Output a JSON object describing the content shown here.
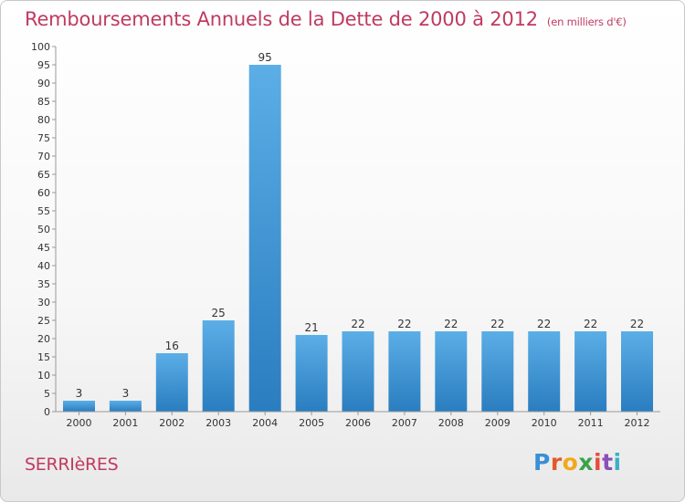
{
  "header": {
    "title": "Remboursements Annuels de la Dette de 2000 à 2012",
    "subtitle": "(en milliers d'€)"
  },
  "footer": {
    "town": "SERRIèRES",
    "logo_letters": [
      "P",
      "r",
      "o",
      "x",
      "i",
      "t",
      "i"
    ],
    "logo_colors": [
      "#3a8fd6",
      "#e35a2a",
      "#f2a81d",
      "#3aa34a",
      "#e84c3d",
      "#8a4fb8",
      "#3ab0c4"
    ]
  },
  "colors": {
    "bar_top": "#5baee6",
    "bar_bottom": "#2a7dbf",
    "axis": "#999999",
    "text": "#333333"
  },
  "chart_data": {
    "type": "bar",
    "categories": [
      "2000",
      "2001",
      "2002",
      "2003",
      "2004",
      "2005",
      "2006",
      "2007",
      "2008",
      "2009",
      "2010",
      "2011",
      "2012"
    ],
    "values": [
      3,
      3,
      16,
      25,
      95,
      21,
      22,
      22,
      22,
      22,
      22,
      22,
      22
    ],
    "ylim": [
      0,
      100
    ],
    "ytick_step": 5,
    "grid": false
  }
}
